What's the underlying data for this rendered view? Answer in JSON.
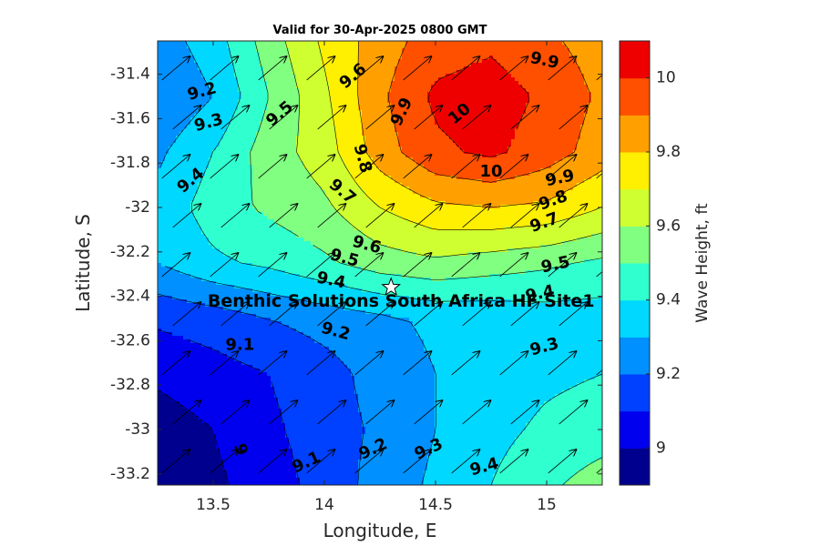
{
  "chart_data": {
    "type": "heatmap",
    "title": "Valid for 30-Apr-2025 0800 GMT",
    "xlabel": "Longitude, E",
    "ylabel": "Latitude, S",
    "colorbar_label": "Wave Height, ft",
    "xlim": [
      13.25,
      15.25
    ],
    "ylim": [
      -33.25,
      -31.25
    ],
    "x_ticks": [
      13.5,
      14,
      14.5,
      15
    ],
    "x_tick_labels": [
      "13.5",
      "14",
      "14.5",
      "15"
    ],
    "y_ticks": [
      -31.4,
      -31.6,
      -31.8,
      -32,
      -32.2,
      -32.4,
      -32.6,
      -32.8,
      -33,
      -33.2
    ],
    "y_tick_labels": [
      "-31.4",
      "-31.6",
      "-31.8",
      "-32",
      "-32.2",
      "-32.4",
      "-32.6",
      "-32.8",
      "-33",
      "-33.2"
    ],
    "colorbar_range": [
      8.9,
      10.1
    ],
    "colorbar_ticks": [
      9,
      9.2,
      9.4,
      9.6,
      9.8,
      10
    ],
    "colorbar_tick_labels": [
      "9",
      "9.2",
      "9.4",
      "9.6",
      "9.8",
      "10"
    ],
    "levels": [
      8.9,
      9.0,
      9.1,
      9.2,
      9.3,
      9.4,
      9.5,
      9.6,
      9.7,
      9.8,
      9.9,
      10.0,
      10.1
    ],
    "level_colors": [
      "#00008f",
      "#0000ef",
      "#0040ff",
      "#0090ff",
      "#00d8ff",
      "#30ffcf",
      "#80ff80",
      "#cfff30",
      "#ffef00",
      "#ffa000",
      "#ff5000",
      "#ef0000",
      "#9f0000"
    ],
    "x": [
      13.25,
      13.5,
      13.75,
      14.0,
      14.25,
      14.5,
      14.75,
      15.0,
      15.25
    ],
    "y": [
      -31.25,
      -31.5,
      -31.75,
      -32.0,
      -32.25,
      -32.5,
      -32.75,
      -33.0,
      -33.25
    ],
    "z": [
      [
        9.25,
        9.35,
        9.55,
        9.72,
        9.85,
        9.95,
        9.98,
        9.92,
        9.85
      ],
      [
        9.2,
        9.3,
        9.5,
        9.68,
        9.88,
        10.02,
        10.05,
        9.98,
        9.88
      ],
      [
        9.28,
        9.4,
        9.55,
        9.65,
        9.85,
        9.98,
        10.02,
        9.95,
        9.85
      ],
      [
        9.33,
        9.45,
        9.52,
        9.58,
        9.7,
        9.78,
        9.8,
        9.78,
        9.7
      ],
      [
        9.3,
        9.38,
        9.42,
        9.48,
        9.55,
        9.58,
        9.55,
        9.52,
        9.48
      ],
      [
        9.12,
        9.15,
        9.2,
        9.24,
        9.28,
        9.32,
        9.33,
        9.35,
        9.35
      ],
      [
        9.02,
        9.06,
        9.1,
        9.16,
        9.24,
        9.3,
        9.35,
        9.38,
        9.4
      ],
      [
        8.95,
        9.0,
        9.08,
        9.15,
        9.22,
        9.3,
        9.37,
        9.42,
        9.45
      ],
      [
        8.95,
        8.98,
        9.05,
        9.14,
        9.24,
        9.32,
        9.4,
        9.48,
        9.55
      ]
    ],
    "wave_direction_deg_from_east": 40,
    "contour_labels": [
      {
        "text": "9.2",
        "lon": 13.45,
        "lat": -31.48,
        "angle": -15
      },
      {
        "text": "9.3",
        "lon": 13.48,
        "lat": -31.62,
        "angle": -15
      },
      {
        "text": "9.4",
        "lon": 13.4,
        "lat": -31.88,
        "angle": -40
      },
      {
        "text": "9.5",
        "lon": 13.8,
        "lat": -31.58,
        "angle": -40
      },
      {
        "text": "9.6",
        "lon": 14.13,
        "lat": -31.41,
        "angle": -40
      },
      {
        "text": "9.7",
        "lon": 14.08,
        "lat": -31.93,
        "angle": 40
      },
      {
        "text": "9.8",
        "lon": 14.17,
        "lat": -31.78,
        "angle": 75
      },
      {
        "text": "9.9",
        "lon": 14.35,
        "lat": -31.57,
        "angle": -65
      },
      {
        "text": "10",
        "lon": 14.61,
        "lat": -31.58,
        "angle": -40
      },
      {
        "text": "9.9",
        "lon": 14.99,
        "lat": -31.34,
        "angle": 12
      },
      {
        "text": "10",
        "lon": 14.75,
        "lat": -31.84,
        "angle": 0
      },
      {
        "text": "9.9",
        "lon": 15.06,
        "lat": -31.87,
        "angle": -12
      },
      {
        "text": "9.8",
        "lon": 15.03,
        "lat": -31.97,
        "angle": -20
      },
      {
        "text": "9.7",
        "lon": 14.99,
        "lat": -32.07,
        "angle": -20
      },
      {
        "text": "9.6",
        "lon": 14.19,
        "lat": -32.17,
        "angle": 15
      },
      {
        "text": "9.5",
        "lon": 14.09,
        "lat": -32.23,
        "angle": 15
      },
      {
        "text": "9.5",
        "lon": 15.04,
        "lat": -32.26,
        "angle": -12
      },
      {
        "text": "9.4",
        "lon": 14.03,
        "lat": -32.33,
        "angle": 12
      },
      {
        "text": "9.4",
        "lon": 14.97,
        "lat": -32.39,
        "angle": -12
      },
      {
        "text": "9.2",
        "lon": 14.05,
        "lat": -32.56,
        "angle": 15
      },
      {
        "text": "9.3",
        "lon": 14.99,
        "lat": -32.63,
        "angle": -15
      },
      {
        "text": "9.1",
        "lon": 13.62,
        "lat": -32.62,
        "angle": 0
      },
      {
        "text": "9",
        "lon": 13.62,
        "lat": -33.09,
        "angle": 75
      },
      {
        "text": "9.1",
        "lon": 13.92,
        "lat": -33.15,
        "angle": -25
      },
      {
        "text": "9.2",
        "lon": 14.22,
        "lat": -33.09,
        "angle": -25
      },
      {
        "text": "9.3",
        "lon": 14.47,
        "lat": -33.09,
        "angle": -25
      },
      {
        "text": "9.4",
        "lon": 14.72,
        "lat": -33.17,
        "angle": -15
      }
    ],
    "site": {
      "name": "Benthic Solutions South Africa HF Site1",
      "lon": 14.3,
      "lat": -32.36
    }
  }
}
